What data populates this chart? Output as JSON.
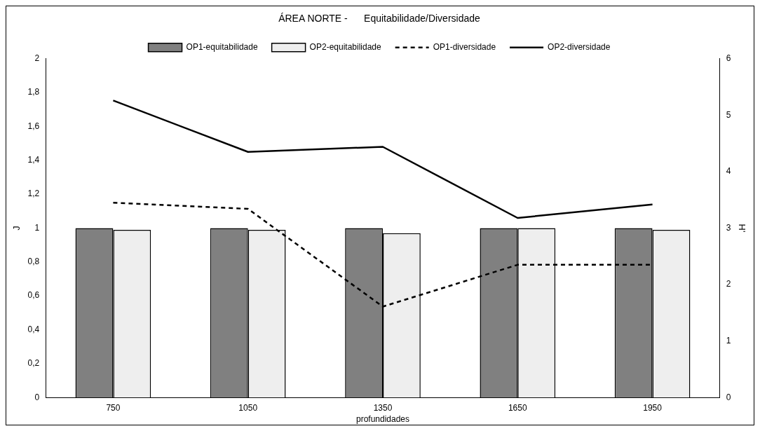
{
  "chart_data": {
    "type": "bar",
    "title": "ÁREA NORTE -      Equitabilidade/Diversidade",
    "xlabel": "profundidades",
    "ylabel": "J",
    "y2label": "H'",
    "categories": [
      "750",
      "1050",
      "1350",
      "1650",
      "1950"
    ],
    "series": [
      {
        "name": "OP1-equitabilidade",
        "type": "bar",
        "color": "#808080",
        "values": [
          1,
          1,
          1,
          1,
          1
        ]
      },
      {
        "name": "OP2-equitabilidade",
        "type": "bar",
        "color": "#eeeeee",
        "values": [
          0.99,
          0.99,
          0.97,
          1,
          0.99
        ]
      },
      {
        "name": "OP1-diversidade",
        "type": "line",
        "axis": "y2",
        "color": "#000000",
        "line_style": "dashed",
        "values": [
          3.45,
          3.34,
          1.61,
          2.35,
          2.35
        ]
      },
      {
        "name": "OP2-diversidade",
        "type": "line",
        "axis": "y2",
        "color": "#000000",
        "line_style": "solid",
        "values": [
          5.26,
          4.35,
          4.44,
          3.18,
          3.42
        ]
      }
    ],
    "ylim": [
      0,
      2
    ],
    "yticks": [
      0,
      {
        "value": 0.2,
        "label": "0,2"
      },
      {
        "value": 0.4,
        "label": "0,4"
      },
      {
        "value": 0.6,
        "label": "0,6"
      },
      {
        "value": 0.8,
        "label": "0,8"
      },
      1,
      {
        "value": 1.2,
        "label": "1,2"
      },
      {
        "value": 1.4,
        "label": "1,4"
      },
      {
        "value": 1.6,
        "label": "1,6"
      },
      {
        "value": 1.8,
        "label": "1,8"
      },
      2
    ],
    "y2lim": [
      0,
      6
    ],
    "y2ticks": [
      0,
      1,
      2,
      3,
      4,
      5,
      6
    ],
    "grid": false,
    "legend": "top",
    "marker": "none"
  }
}
